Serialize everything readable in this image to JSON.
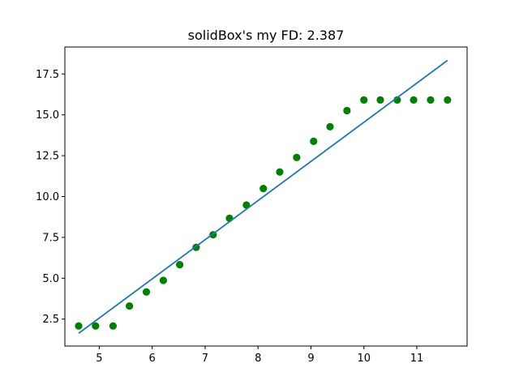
{
  "chart_data": {
    "type": "scatter",
    "title": "solidBox's my FD: 2.387",
    "xlabel": "",
    "ylabel": "",
    "xlim": [
      4.35,
      11.95
    ],
    "ylim": [
      0.85,
      19.15
    ],
    "xticks": [
      5,
      6,
      7,
      8,
      9,
      10,
      11
    ],
    "xtick_labels": [
      "5",
      "6",
      "7",
      "8",
      "9",
      "10",
      "11"
    ],
    "yticks": [
      2.5,
      5.0,
      7.5,
      10.0,
      12.5,
      15.0,
      17.5
    ],
    "ytick_labels": [
      "2.5",
      "5.0",
      "7.5",
      "10.0",
      "12.5",
      "15.0",
      "17.5"
    ],
    "grid": false,
    "series": [
      {
        "type": "scatter",
        "color": "#008000",
        "x": [
          4.61,
          4.93,
          5.26,
          5.57,
          5.89,
          6.21,
          6.52,
          6.83,
          7.15,
          7.46,
          7.78,
          8.1,
          8.41,
          8.73,
          9.05,
          9.36,
          9.68,
          10.0,
          10.31,
          10.63,
          10.94,
          11.26,
          11.58
        ],
        "y": [
          2.08,
          2.08,
          2.08,
          3.3,
          4.16,
          4.87,
          5.83,
          6.89,
          7.66,
          8.67,
          9.48,
          10.49,
          11.5,
          12.39,
          13.38,
          14.27,
          15.26,
          15.91,
          15.91,
          15.91,
          15.91,
          15.91,
          15.91
        ]
      },
      {
        "type": "line",
        "color": "#1f77b4",
        "x": [
          4.61,
          11.58
        ],
        "y": [
          1.63,
          18.33
        ]
      }
    ]
  }
}
